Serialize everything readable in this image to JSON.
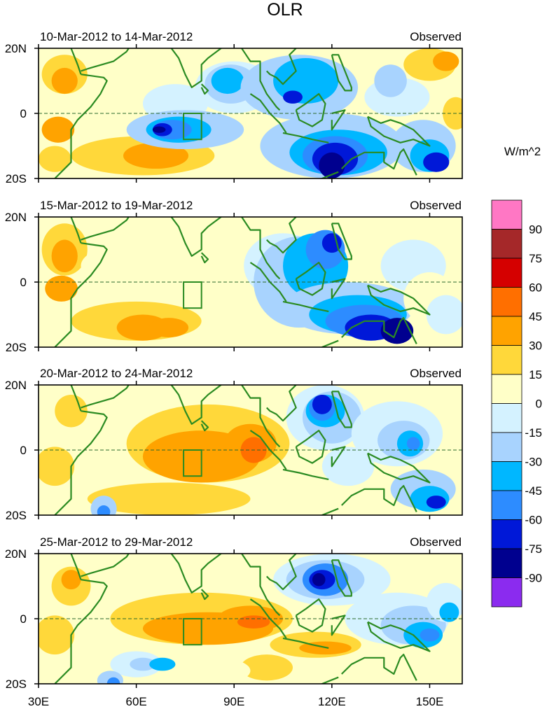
{
  "title": "OLR",
  "colorbar": {
    "units": "W/m^2",
    "labels": [
      "90",
      "75",
      "60",
      "45",
      "30",
      "15",
      "0",
      "-15",
      "-30",
      "-45",
      "-60",
      "-75",
      "-90"
    ],
    "colors": [
      "#ff77c4",
      "#a52829",
      "#d50000",
      "#ff6f00",
      "#ffa300",
      "#ffd83a",
      "#ffffc8",
      "#d4f2ff",
      "#a8d3fe",
      "#00b7ff",
      "#2d8cff",
      "#0018d8",
      "#00008f",
      "#8b2bef"
    ]
  },
  "axes": {
    "lon_ticks": [
      "30E",
      "60E",
      "90E",
      "120E",
      "150E"
    ],
    "lat_ticks": [
      "20N",
      "0",
      "20S"
    ]
  },
  "panels": [
    {
      "date_range": "10-Mar-2012 to 14-Mar-2012",
      "label": "Observed"
    },
    {
      "date_range": "15-Mar-2012 to 19-Mar-2012",
      "label": "Observed"
    },
    {
      "date_range": "20-Mar-2012 to 24-Mar-2012",
      "label": "Observed"
    },
    {
      "date_range": "25-Mar-2012 to 29-Mar-2012",
      "label": "Observed"
    }
  ]
}
